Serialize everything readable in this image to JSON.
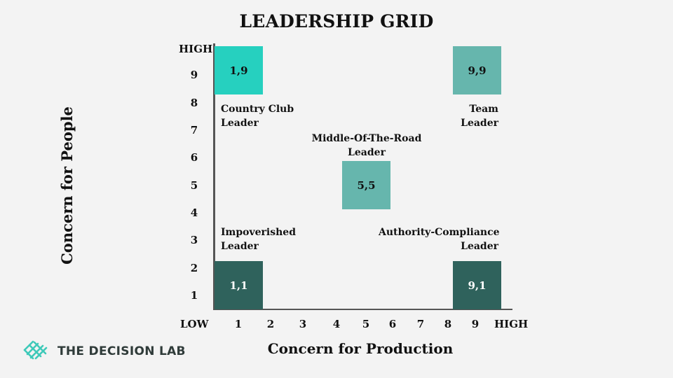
{
  "title": "LEADERSHIP GRID",
  "y_axis": {
    "label": "Concern for People",
    "high_label": "HIGH",
    "ticks": [
      "9",
      "8",
      "7",
      "6",
      "5",
      "4",
      "3",
      "2",
      "1"
    ]
  },
  "x_axis": {
    "label": "Concern for Production",
    "low_label": "LOW",
    "high_label": "HIGH",
    "ticks": [
      "1",
      "2",
      "3",
      "4",
      "5",
      "6",
      "7",
      "8",
      "9"
    ]
  },
  "cells": [
    {
      "id": "1-9",
      "label": "1,9",
      "color": "#26d0bf",
      "text_color": "#111111"
    },
    {
      "id": "9-9",
      "label": "9,9",
      "color": "#66b6ad",
      "text_color": "#111111"
    },
    {
      "id": "5-5",
      "label": "5,5",
      "color": "#66b6ad",
      "text_color": "#111111"
    },
    {
      "id": "1-1",
      "label": "1,1",
      "color": "#2f625c",
      "text_color": "#ffffff"
    },
    {
      "id": "9-1",
      "label": "9,1",
      "color": "#2f625c",
      "text_color": "#ffffff"
    }
  ],
  "leaders": {
    "country_club": [
      "Country Club",
      "Leader"
    ],
    "team": [
      "Team",
      "Leader"
    ],
    "middle": [
      "Middle-Of-The-Road",
      "Leader"
    ],
    "impoverished": [
      "Impoverished",
      "Leader"
    ],
    "authority": [
      "Authority-Compliance",
      "Leader"
    ]
  },
  "logo": {
    "text": "THE DECISION LAB",
    "icon": "decision-lab-logo-icon",
    "color": "#3ec9b9"
  }
}
